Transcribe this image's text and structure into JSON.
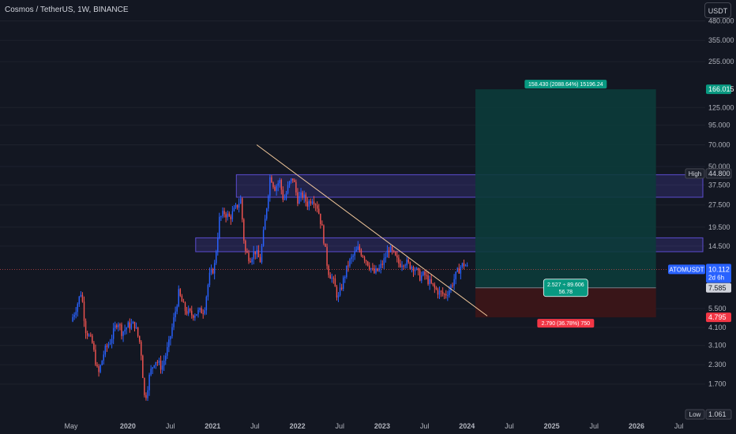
{
  "header": {
    "title": "Cosmos / TetherUS, 1W, BINANCE",
    "currency_button": "USDT"
  },
  "colors": {
    "background": "#131722",
    "up": "#2962ff",
    "down": "#ef5350",
    "profit_zone": "#0c3b3a",
    "loss_zone": "#3b1518",
    "zone_box": "#5c4dd0",
    "trendline": "#f2c89b"
  },
  "chart_data": {
    "type": "candlestick",
    "yscale": "log",
    "ylim": [
      1.0,
      520
    ],
    "y_ticks": [
      "480.000",
      "355.000",
      "255.000",
      "125.000",
      "95.000",
      "70.000",
      "50.000",
      "37.500",
      "27.500",
      "19.500",
      "14.500",
      "5.500",
      "4.100",
      "3.100",
      "2.300",
      "1.700"
    ],
    "x_ticks": [
      "May",
      "2020",
      "Jul",
      "2021",
      "Jul",
      "2022",
      "Jul",
      "2023",
      "Jul",
      "2024",
      "Jul",
      "2025",
      "Jul",
      "2026",
      "Jul"
    ],
    "x_tick_dates": [
      2019.33,
      2020.0,
      2020.5,
      2021.0,
      2021.5,
      2022.0,
      2022.5,
      2023.0,
      2023.5,
      2024.0,
      2024.5,
      2025.0,
      2025.5,
      2026.0,
      2026.5
    ],
    "price_path": [
      [
        2019.33,
        4.5
      ],
      [
        2019.4,
        5.8
      ],
      [
        2019.45,
        7.2
      ],
      [
        2019.5,
        4.0
      ],
      [
        2019.58,
        3.2
      ],
      [
        2019.65,
        1.95
      ],
      [
        2019.72,
        2.8
      ],
      [
        2019.8,
        3.4
      ],
      [
        2019.88,
        4.6
      ],
      [
        2019.93,
        3.8
      ],
      [
        2020.0,
        4.2
      ],
      [
        2020.08,
        4.3
      ],
      [
        2020.15,
        3.1
      ],
      [
        2020.2,
        1.3
      ],
      [
        2020.26,
        2.0
      ],
      [
        2020.32,
        2.5
      ],
      [
        2020.4,
        2.2
      ],
      [
        2020.48,
        3.1
      ],
      [
        2020.55,
        4.9
      ],
      [
        2020.6,
        7.0
      ],
      [
        2020.67,
        5.4
      ],
      [
        2020.75,
        5.0
      ],
      [
        2020.83,
        5.2
      ],
      [
        2020.9,
        5.4
      ],
      [
        2020.96,
        9.0
      ],
      [
        2021.02,
        10.5
      ],
      [
        2021.08,
        22.0
      ],
      [
        2021.14,
        24.5
      ],
      [
        2021.2,
        22.5
      ],
      [
        2021.27,
        26.0
      ],
      [
        2021.33,
        30.0
      ],
      [
        2021.38,
        13.5
      ],
      [
        2021.44,
        12.0
      ],
      [
        2021.5,
        13.5
      ],
      [
        2021.56,
        11.5
      ],
      [
        2021.62,
        22.0
      ],
      [
        2021.68,
        44.0
      ],
      [
        2021.73,
        36.0
      ],
      [
        2021.79,
        40.0
      ],
      [
        2021.84,
        29.0
      ],
      [
        2021.9,
        38.0
      ],
      [
        2021.95,
        42.0
      ],
      [
        2022.0,
        30.0
      ],
      [
        2022.06,
        32.0
      ],
      [
        2022.12,
        28.0
      ],
      [
        2022.18,
        31.0
      ],
      [
        2022.24,
        26.5
      ],
      [
        2022.3,
        18.0
      ],
      [
        2022.36,
        10.0
      ],
      [
        2022.42,
        8.5
      ],
      [
        2022.48,
        6.4
      ],
      [
        2022.54,
        8.5
      ],
      [
        2022.6,
        11.0
      ],
      [
        2022.66,
        12.5
      ],
      [
        2022.72,
        14.0
      ],
      [
        2022.78,
        12.5
      ],
      [
        2022.84,
        11.0
      ],
      [
        2022.9,
        9.5
      ],
      [
        2022.96,
        10.0
      ],
      [
        2023.02,
        11.5
      ],
      [
        2023.08,
        14.0
      ],
      [
        2023.14,
        12.5
      ],
      [
        2023.2,
        11.0
      ],
      [
        2023.26,
        11.5
      ],
      [
        2023.32,
        10.8
      ],
      [
        2023.38,
        10.5
      ],
      [
        2023.44,
        9.0
      ],
      [
        2023.5,
        9.3
      ],
      [
        2023.56,
        8.2
      ],
      [
        2023.62,
        7.5
      ],
      [
        2023.68,
        7.0
      ],
      [
        2023.74,
        6.8
      ],
      [
        2023.8,
        7.5
      ],
      [
        2023.86,
        9.0
      ],
      [
        2023.92,
        10.5
      ],
      [
        2023.97,
        11.0
      ],
      [
        2024.02,
        10.1
      ]
    ],
    "zones": [
      {
        "low": 31.0,
        "high": 44.0,
        "from": 2021.28,
        "to": 2027.0
      },
      {
        "low": 13.3,
        "high": 16.5,
        "from": 2020.8,
        "to": 2027.0
      }
    ],
    "trendline": {
      "from": [
        2021.52,
        70.0
      ],
      "to": [
        2024.24,
        4.9
      ]
    },
    "position": {
      "from": 2024.1,
      "to": 2026.23,
      "entry": 7.585,
      "target": 166.015,
      "stop": 4.795,
      "target_label": "158.430 (2088.64%) 15196.24",
      "stop_label": "2.790 (36.78%) 750",
      "ratio_label_1": "2.527 ÷ 89.606",
      "ratio_label_2": "56.78"
    },
    "price_tags": [
      {
        "text": "166.015",
        "value": 166.015,
        "bg": "#089981",
        "color": "#ffffff"
      },
      {
        "text": "44.800",
        "value": 44.8,
        "bg": "#1e222d",
        "color": "#d1d4dc",
        "side_label": "High"
      },
      {
        "text": "7.585",
        "value": 7.585,
        "bg": "#d1d4dc",
        "color": "#131722"
      },
      {
        "text": "4.795",
        "value": 4.795,
        "bg": "#f23645",
        "color": "#ffffff"
      },
      {
        "text": "1.061",
        "value": 1.061,
        "bg": "#1e222d",
        "color": "#d1d4dc",
        "side_label": "Low"
      }
    ],
    "last_price": {
      "symbol": "ATOMUSDT",
      "value": 10.112,
      "text": "10.112",
      "countdown": "2d 6h"
    }
  }
}
